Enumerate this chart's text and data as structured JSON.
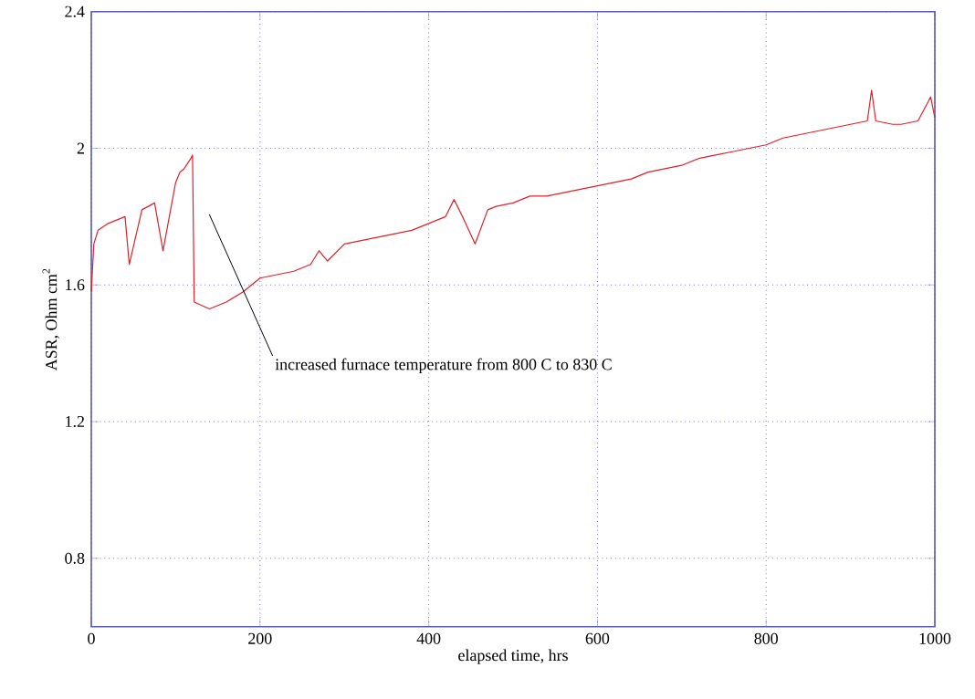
{
  "chart_data": {
    "type": "line",
    "xlabel": "elapsed time, hrs",
    "ylabel": "ASR, Ohm cm$^{2}$",
    "xlim": [
      0,
      1000
    ],
    "ylim": [
      0.6,
      2.4
    ],
    "xticks": [
      0,
      200,
      400,
      600,
      800,
      1000
    ],
    "yticks": [
      0.8,
      1.2,
      1.6,
      2,
      2.4
    ],
    "grid": true,
    "marker": "none",
    "line_style": "solid",
    "x": [
      0,
      3,
      8,
      20,
      30,
      40,
      45,
      60,
      75,
      85,
      100,
      105,
      110,
      118,
      120,
      122,
      140,
      160,
      180,
      200,
      220,
      240,
      260,
      270,
      280,
      300,
      320,
      340,
      360,
      380,
      400,
      420,
      430,
      440,
      455,
      470,
      480,
      500,
      520,
      540,
      560,
      580,
      600,
      620,
      640,
      660,
      680,
      700,
      720,
      740,
      760,
      780,
      800,
      820,
      840,
      860,
      880,
      900,
      920,
      925,
      930,
      950,
      960,
      980,
      995,
      1000
    ],
    "series": [
      {
        "color": "#e0202a",
        "values": [
          1.58,
          1.72,
          1.76,
          1.78,
          1.79,
          1.8,
          1.66,
          1.82,
          1.84,
          1.7,
          1.9,
          1.93,
          1.94,
          1.97,
          1.98,
          1.55,
          1.53,
          1.55,
          1.58,
          1.62,
          1.63,
          1.64,
          1.66,
          1.7,
          1.67,
          1.72,
          1.73,
          1.74,
          1.75,
          1.76,
          1.78,
          1.8,
          1.85,
          1.8,
          1.72,
          1.82,
          1.83,
          1.84,
          1.86,
          1.86,
          1.87,
          1.88,
          1.89,
          1.9,
          1.91,
          1.93,
          1.94,
          1.95,
          1.97,
          1.98,
          1.99,
          2.0,
          2.01,
          2.03,
          2.04,
          2.05,
          2.06,
          2.07,
          2.08,
          2.17,
          2.08,
          2.07,
          2.07,
          2.08,
          2.15,
          2.09
        ]
      }
    ],
    "annotations": [
      "increased furnace temperature from 800 C to 830 C"
    ]
  }
}
